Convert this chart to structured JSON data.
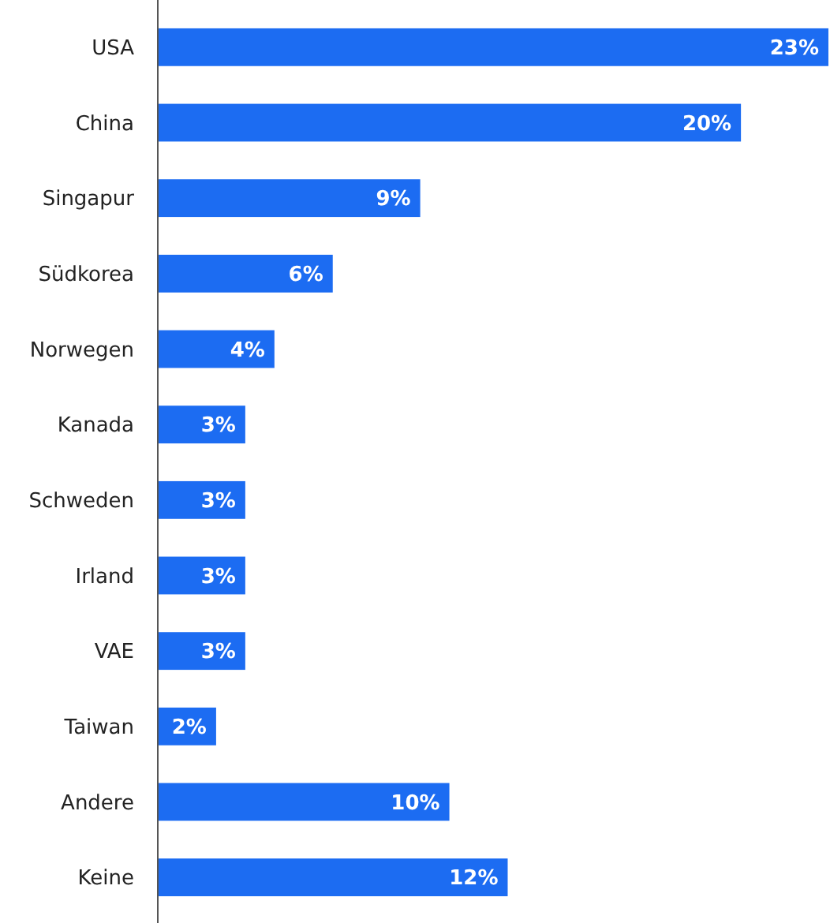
{
  "chart_data": {
    "type": "bar",
    "orientation": "horizontal",
    "categories": [
      "USA",
      "China",
      "Singapur",
      "Südkorea",
      "Norwegen",
      "Kanada",
      "Schweden",
      "Irland",
      "VAE",
      "Taiwan",
      "Andere",
      "Keine"
    ],
    "values": [
      23,
      20,
      9,
      6,
      4,
      3,
      3,
      3,
      3,
      2,
      10,
      12
    ],
    "value_labels": [
      "23%",
      "20%",
      "9%",
      "6%",
      "4%",
      "3%",
      "3%",
      "3%",
      "3%",
      "2%",
      "10%",
      "12%"
    ],
    "color": "#1c6cf2"
  }
}
